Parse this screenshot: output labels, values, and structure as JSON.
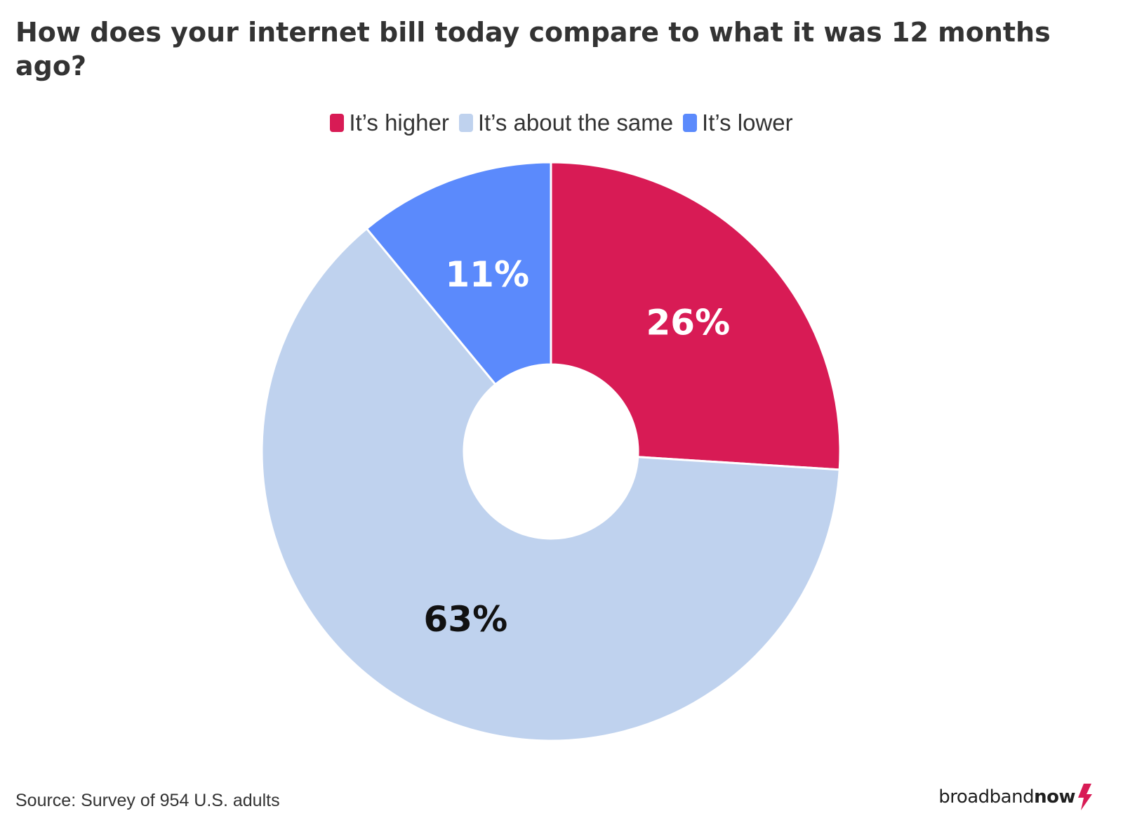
{
  "title": "How does your internet bill today compare to what it was 12 months ago?",
  "source": "Source: Survey of 954 U.S. adults",
  "brand": {
    "part1": "broadband",
    "part2": "now",
    "accent_color": "#d81b55"
  },
  "chart_data": {
    "type": "pie",
    "donut": true,
    "title": "How does your internet bill today compare to what it was 12 months ago?",
    "legend_position": "top",
    "slices": [
      {
        "name": "It’s higher",
        "value": 26,
        "label": "26%",
        "color": "#d81b55",
        "label_color": "#ffffff"
      },
      {
        "name": "It’s about the same",
        "value": 63,
        "label": "63%",
        "color": "#bfd2ee",
        "label_color": "#111111"
      },
      {
        "name": "It’s lower",
        "value": 11,
        "label": "11%",
        "color": "#5b8afc",
        "label_color": "#ffffff"
      }
    ]
  }
}
